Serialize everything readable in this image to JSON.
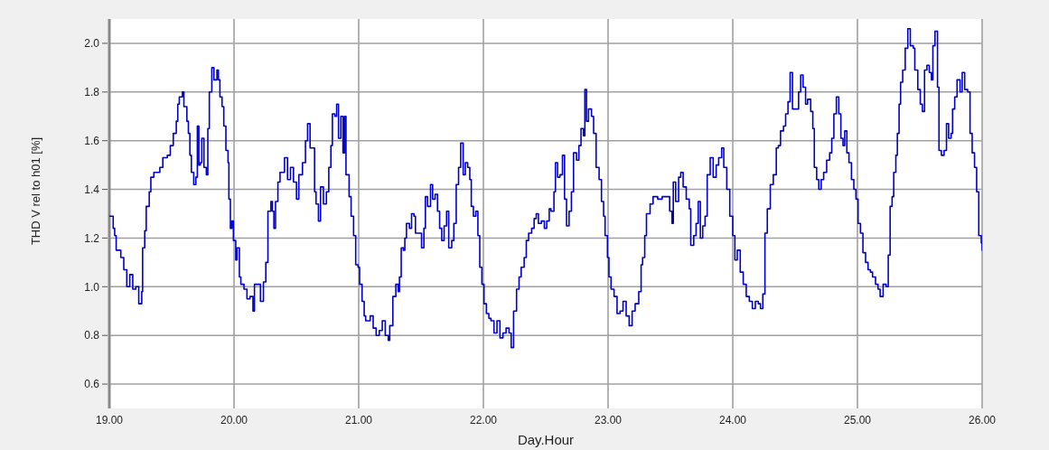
{
  "chart_data": {
    "type": "step",
    "xlabel": "Day.Hour",
    "ylabel": "THD V rel to h01 [%]",
    "xlim": [
      19,
      26
    ],
    "xticks": [
      {
        "value": 19,
        "label": "19.00"
      },
      {
        "value": 20,
        "label": "20.00"
      },
      {
        "value": 21,
        "label": "21.00"
      },
      {
        "value": 22,
        "label": "22.00"
      },
      {
        "value": 23,
        "label": "23.00"
      },
      {
        "value": 24,
        "label": "24.00"
      },
      {
        "value": 25,
        "label": "25.00"
      },
      {
        "value": 26,
        "label": "26.00"
      }
    ],
    "ylim": [
      0.5,
      2.1
    ],
    "yticks": [
      0.6,
      0.8,
      {
        "value": 1,
        "label": "1.0"
      },
      1.2,
      1.4,
      1.6,
      1.8,
      {
        "value": 2,
        "label": "2.0"
      }
    ],
    "grid": true,
    "x": [
      19.0,
      19.019,
      19.031,
      19.043,
      19.055,
      19.092,
      19.116,
      19.14,
      19.164,
      19.188,
      19.212,
      19.236,
      19.26,
      19.267,
      19.284,
      19.296,
      19.32,
      19.333,
      19.357,
      19.405,
      19.429,
      19.465,
      19.489,
      19.513,
      19.537,
      19.549,
      19.561,
      19.586,
      19.598,
      19.622,
      19.634,
      19.646,
      19.658,
      19.677,
      19.694,
      19.706,
      19.718,
      19.73,
      19.742,
      19.759,
      19.778,
      19.79,
      19.802,
      19.822,
      19.839,
      19.863,
      19.875,
      19.887,
      19.904,
      19.918,
      19.935,
      19.952,
      19.959,
      19.971,
      19.983,
      19.995,
      20.014,
      20.024,
      20.043,
      20.055,
      20.08,
      20.104,
      20.128,
      20.152,
      20.164,
      20.188,
      20.212,
      20.236,
      20.255,
      20.272,
      20.296,
      20.308,
      20.32,
      20.333,
      20.352,
      20.369,
      20.405,
      20.429,
      20.453,
      20.477,
      20.501,
      20.52,
      20.549,
      20.573,
      20.59,
      20.61,
      20.634,
      20.646,
      20.658,
      20.677,
      20.694,
      20.717,
      20.741,
      20.76,
      20.777,
      20.789,
      20.809,
      20.823,
      20.838,
      20.857,
      20.874,
      20.886,
      20.898,
      20.923,
      20.939,
      20.959,
      20.976,
      20.995,
      21.007,
      21.027,
      21.044,
      21.056,
      21.092,
      21.116,
      21.14,
      21.165,
      21.189,
      21.213,
      21.237,
      21.249,
      21.274,
      21.298,
      21.317,
      21.327,
      21.341,
      21.358,
      21.37,
      21.383,
      21.407,
      21.424,
      21.443,
      21.455,
      21.479,
      21.504,
      21.523,
      21.535,
      21.552,
      21.576,
      21.593,
      21.613,
      21.632,
      21.649,
      21.666,
      21.685,
      21.705,
      21.722,
      21.746,
      21.763,
      21.782,
      21.801,
      21.818,
      21.838,
      21.855,
      21.874,
      21.891,
      21.903,
      21.92,
      21.939,
      21.956,
      21.971,
      21.988,
      22.005,
      22.024,
      22.044,
      22.061,
      22.085,
      22.109,
      22.133,
      22.157,
      22.182,
      22.206,
      22.223,
      22.242,
      22.266,
      22.286,
      22.303,
      22.327,
      22.344,
      22.363,
      22.387,
      22.407,
      22.424,
      22.441,
      22.465,
      22.489,
      22.508,
      22.528,
      22.542,
      22.566,
      22.578,
      22.595,
      22.614,
      22.634,
      22.651,
      22.667,
      22.687,
      22.706,
      22.723,
      22.747,
      22.766,
      22.783,
      22.802,
      22.814,
      22.827,
      22.843,
      22.867,
      22.884,
      22.904,
      22.928,
      22.947,
      22.964,
      22.976,
      22.995,
      23.007,
      23.024,
      23.048,
      23.072,
      23.096,
      23.12,
      23.145,
      23.169,
      23.193,
      23.217,
      23.246,
      23.265,
      23.277,
      23.294,
      23.308,
      23.337,
      23.361,
      23.398,
      23.434,
      23.47,
      23.494,
      23.513,
      23.523,
      23.542,
      23.566,
      23.583,
      23.602,
      23.627,
      23.651,
      23.663,
      23.687,
      23.706,
      23.723,
      23.74,
      23.759,
      23.778,
      23.795,
      23.819,
      23.843,
      23.867,
      23.887,
      23.911,
      23.928,
      23.952,
      23.976,
      24.0,
      24.017,
      24.036,
      24.06,
      24.084,
      24.108,
      24.133,
      24.157,
      24.181,
      24.205,
      24.222,
      24.241,
      24.258,
      24.277,
      24.301,
      24.325,
      24.349,
      24.366,
      24.383,
      24.407,
      24.424,
      24.443,
      24.46,
      24.479,
      24.504,
      24.528,
      24.545,
      24.564,
      24.584,
      24.6,
      24.625,
      24.642,
      24.654,
      24.673,
      24.69,
      24.709,
      24.729,
      24.753,
      24.777,
      24.794,
      24.811,
      24.831,
      24.85,
      24.867,
      24.884,
      24.898,
      24.915,
      24.932,
      24.952,
      24.971,
      24.988,
      25.005,
      25.024,
      25.044,
      25.065,
      25.085,
      25.104,
      25.121,
      25.145,
      25.165,
      25.182,
      25.206,
      25.23,
      25.247,
      25.262,
      25.278,
      25.291,
      25.308,
      25.32,
      25.334,
      25.346,
      25.363,
      25.383,
      25.404,
      25.424,
      25.448,
      25.46,
      25.484,
      25.504,
      25.521,
      25.538,
      25.557,
      25.576,
      25.593,
      25.605,
      25.622,
      25.642,
      25.654,
      25.673,
      25.695,
      25.714,
      25.731,
      25.751,
      25.763,
      25.78,
      25.799,
      25.823,
      25.84,
      25.86,
      25.884,
      25.903,
      25.92,
      25.939,
      25.956,
      25.973,
      25.993,
      26.0
    ],
    "series": [
      {
        "color": "#0000cc",
        "values": [
          1.29,
          1.29,
          1.24,
          1.21,
          1.15,
          1.12,
          1.07,
          1.0,
          1.05,
          0.99,
          1.0,
          0.93,
          0.98,
          1.16,
          1.23,
          1.33,
          1.39,
          1.45,
          1.47,
          1.49,
          1.53,
          1.54,
          1.58,
          1.63,
          1.68,
          1.75,
          1.78,
          1.8,
          1.74,
          1.68,
          1.63,
          1.54,
          1.47,
          1.42,
          1.45,
          1.66,
          1.5,
          1.51,
          1.61,
          1.49,
          1.46,
          1.65,
          1.8,
          1.9,
          1.85,
          1.89,
          1.85,
          1.78,
          1.74,
          1.66,
          1.56,
          1.51,
          1.36,
          1.24,
          1.27,
          1.19,
          1.11,
          1.16,
          1.04,
          1.01,
          0.99,
          0.95,
          0.96,
          0.9,
          1.01,
          1.01,
          0.94,
          1.02,
          1.1,
          1.31,
          1.35,
          1.31,
          1.24,
          1.35,
          1.43,
          1.47,
          1.53,
          1.44,
          1.49,
          1.43,
          1.36,
          1.46,
          1.51,
          1.6,
          1.67,
          1.57,
          1.57,
          1.39,
          1.34,
          1.27,
          1.41,
          1.34,
          1.39,
          1.49,
          1.58,
          1.71,
          1.7,
          1.75,
          1.61,
          1.7,
          1.55,
          1.7,
          1.46,
          1.37,
          1.29,
          1.21,
          1.09,
          1.08,
          1.01,
          0.94,
          0.88,
          0.86,
          0.88,
          0.83,
          0.8,
          0.82,
          0.86,
          0.8,
          0.78,
          0.84,
          0.96,
          1.01,
          0.98,
          1.04,
          1.16,
          1.15,
          1.2,
          1.26,
          1.24,
          1.3,
          1.29,
          1.22,
          1.22,
          1.16,
          1.24,
          1.37,
          1.33,
          1.42,
          1.36,
          1.38,
          1.31,
          1.24,
          1.19,
          1.25,
          1.31,
          1.16,
          1.19,
          1.26,
          1.42,
          1.49,
          1.59,
          1.46,
          1.51,
          1.49,
          1.44,
          1.33,
          1.29,
          1.31,
          1.21,
          1.08,
          1.01,
          0.93,
          0.89,
          0.87,
          0.86,
          0.81,
          0.86,
          0.79,
          0.81,
          0.83,
          0.81,
          0.75,
          0.9,
          0.99,
          1.04,
          1.08,
          1.12,
          1.19,
          1.22,
          1.24,
          1.28,
          1.3,
          1.26,
          1.27,
          1.24,
          1.27,
          1.32,
          1.31,
          1.39,
          1.51,
          1.45,
          1.46,
          1.54,
          1.36,
          1.25,
          1.31,
          1.39,
          1.55,
          1.52,
          1.58,
          1.65,
          1.62,
          1.81,
          1.68,
          1.73,
          1.7,
          1.63,
          1.49,
          1.44,
          1.35,
          1.29,
          1.21,
          1.12,
          1.04,
          0.99,
          0.96,
          0.89,
          0.9,
          0.94,
          0.88,
          0.84,
          0.9,
          0.93,
          0.98,
          1.09,
          1.12,
          1.21,
          1.3,
          1.34,
          1.37,
          1.36,
          1.37,
          1.37,
          1.31,
          1.26,
          1.43,
          1.35,
          1.45,
          1.47,
          1.41,
          1.36,
          1.32,
          1.17,
          1.21,
          1.26,
          1.35,
          1.2,
          1.25,
          1.29,
          1.46,
          1.53,
          1.45,
          1.5,
          1.53,
          1.57,
          1.49,
          1.4,
          1.29,
          1.21,
          1.11,
          1.15,
          1.06,
          1.01,
          0.96,
          0.94,
          0.91,
          0.94,
          0.93,
          0.91,
          0.97,
          1.22,
          1.32,
          1.42,
          1.46,
          1.57,
          1.58,
          1.64,
          1.66,
          1.71,
          1.76,
          1.88,
          1.73,
          1.73,
          1.8,
          1.87,
          1.82,
          1.75,
          1.77,
          1.72,
          1.65,
          1.49,
          1.44,
          1.4,
          1.44,
          1.47,
          1.52,
          1.55,
          1.61,
          1.71,
          1.78,
          1.71,
          1.61,
          1.58,
          1.64,
          1.55,
          1.51,
          1.44,
          1.4,
          1.36,
          1.26,
          1.22,
          1.14,
          1.1,
          1.07,
          1.06,
          1.04,
          1.01,
          0.99,
          0.96,
          1.01,
          1.0,
          1.13,
          1.33,
          1.37,
          1.47,
          1.54,
          1.63,
          1.75,
          1.84,
          1.89,
          1.98,
          2.06,
          1.99,
          1.98,
          1.89,
          1.81,
          1.75,
          1.72,
          1.89,
          1.91,
          1.88,
          1.85,
          1.99,
          2.05,
          1.82,
          1.56,
          1.54,
          1.56,
          1.67,
          1.61,
          1.63,
          1.73,
          1.78,
          1.85,
          1.8,
          1.88,
          1.81,
          1.8,
          1.63,
          1.55,
          1.49,
          1.39,
          1.21,
          1.18,
          1.15
        ]
      }
    ]
  }
}
